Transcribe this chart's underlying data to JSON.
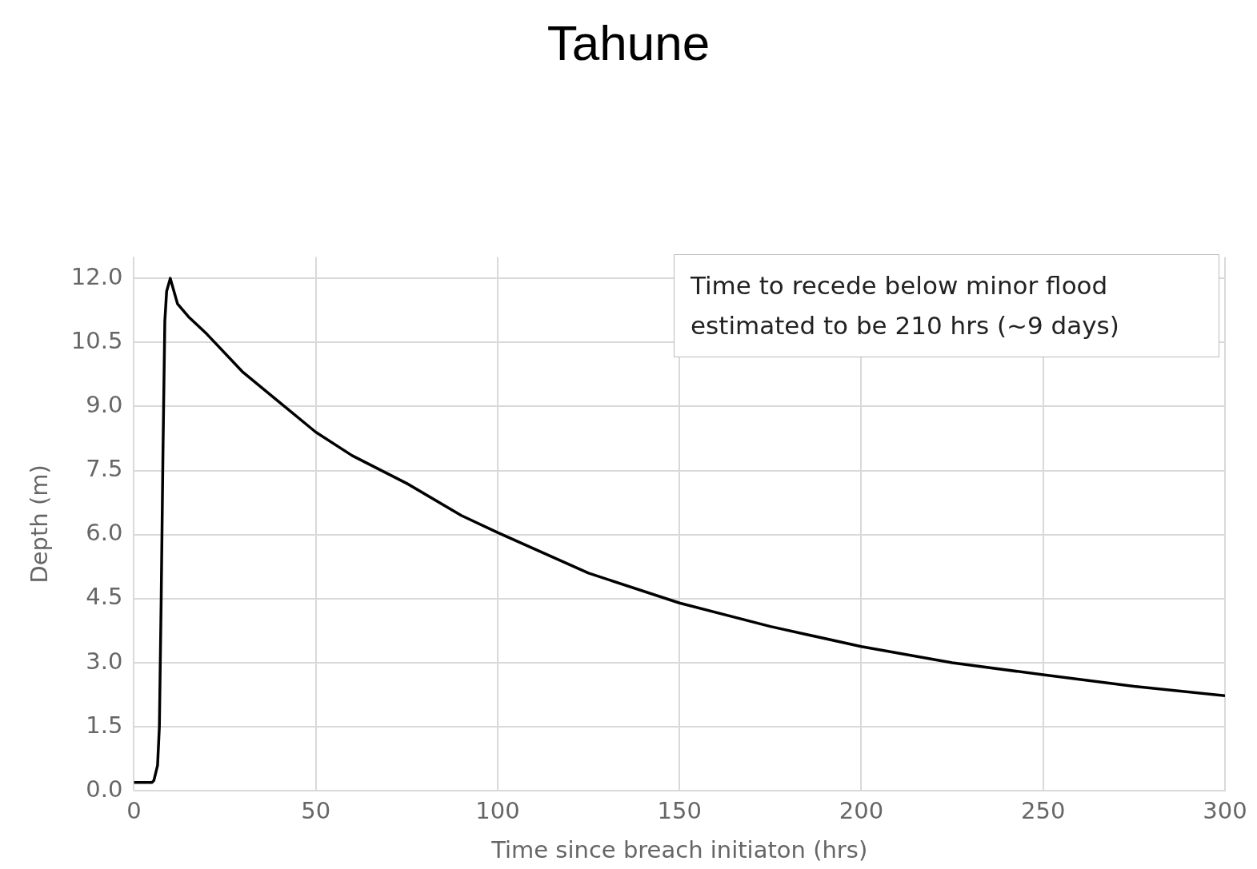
{
  "chart_data": {
    "type": "line",
    "title": "Tahune",
    "xlabel": "Time since breach initiaton (hrs)",
    "ylabel": "Depth (m)",
    "x": [
      0,
      5,
      5.5,
      6.5,
      7,
      7.5,
      8,
      8.5,
      9,
      10,
      11,
      12,
      15,
      20,
      30,
      40,
      50,
      60,
      75,
      90,
      100,
      125,
      150,
      175,
      200,
      225,
      250,
      275,
      300
    ],
    "series": [
      {
        "color": "#000000",
        "values": [
          0.2,
          0.2,
          0.25,
          0.6,
          1.5,
          4.5,
          8,
          11,
          11.7,
          12.0,
          11.7,
          11.4,
          11.1,
          10.7,
          9.8,
          9.1,
          8.4,
          7.85,
          7.2,
          6.45,
          6.05,
          5.1,
          4.4,
          3.85,
          3.38,
          3.0,
          2.72,
          2.45,
          2.23
        ]
      }
    ],
    "xlim": [
      0,
      300
    ],
    "xticks": [
      0,
      50,
      100,
      150,
      200,
      250,
      300
    ],
    "ylim": [
      0,
      12.5
    ],
    "yticks": [
      {
        "value": 0,
        "label": "0.0"
      },
      {
        "value": 1.5,
        "label": "1.5"
      },
      {
        "value": 3,
        "label": "3.0"
      },
      {
        "value": 4.5,
        "label": "4.5"
      },
      {
        "value": 6,
        "label": "6.0"
      },
      {
        "value": 7.5,
        "label": "7.5"
      },
      {
        "value": 9,
        "label": "9.0"
      },
      {
        "value": 10.5,
        "label": "10.5"
      },
      {
        "value": 12,
        "label": "12.0"
      }
    ],
    "grid": true,
    "legend": false,
    "marker": "none",
    "line_style": "solid",
    "annotations": [
      "Time to recede below minor flood estimated to be 210 hrs (~9 days)"
    ]
  }
}
